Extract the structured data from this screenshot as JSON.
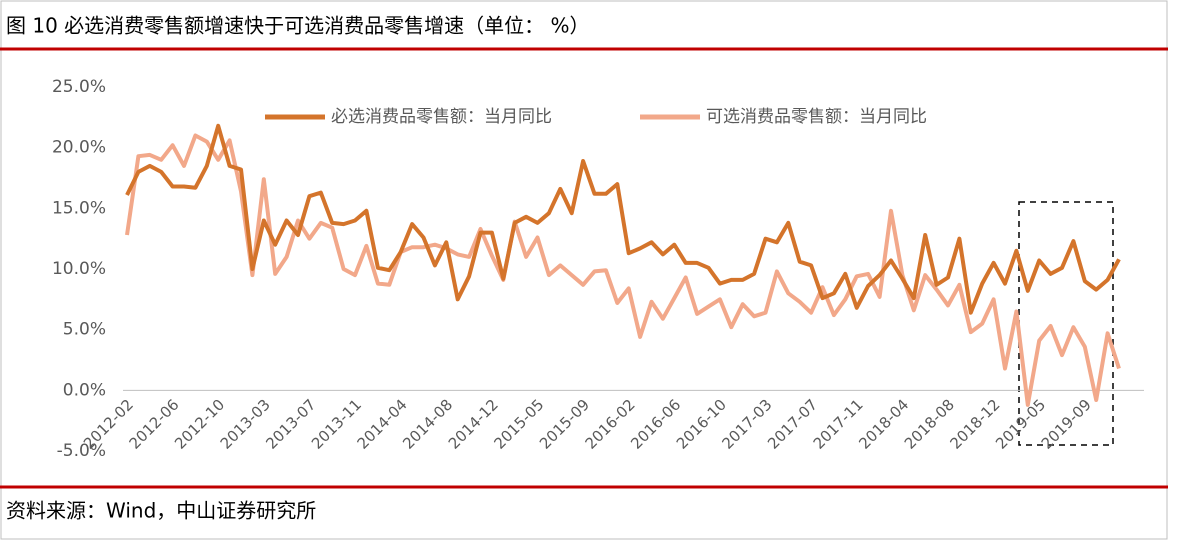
{
  "chart_data": {
    "type": "line",
    "title": "图 10 必选消费零售额增速快于可选消费品零售增速（单位： %）",
    "source": "资料来源：Wind，中山证券研究所",
    "categories": [
      "2012-02",
      null,
      null,
      null,
      "2012-06",
      null,
      null,
      null,
      "2012-10",
      null,
      null,
      null,
      "2013-03",
      null,
      null,
      null,
      "2013-07",
      null,
      null,
      null,
      "2013-11",
      null,
      null,
      null,
      "2014-04",
      null,
      null,
      null,
      "2014-08",
      null,
      null,
      null,
      "2014-12",
      null,
      null,
      null,
      "2015-05",
      null,
      null,
      null,
      "2015-09",
      null,
      null,
      null,
      "2016-02",
      null,
      null,
      null,
      "2016-06",
      null,
      null,
      null,
      "2016-10",
      null,
      null,
      null,
      "2017-03",
      null,
      null,
      null,
      "2017-07",
      null,
      null,
      null,
      "2017-11",
      null,
      null,
      null,
      "2018-04",
      null,
      null,
      null,
      "2018-08",
      null,
      null,
      null,
      "2018-12",
      null,
      null,
      null,
      "2019-05",
      null,
      null,
      null,
      "2019-09",
      null,
      null,
      null
    ],
    "series": [
      {
        "name": "必选消费品零售额：当月同比",
        "color": "#d4742b",
        "values": [
          16.1,
          18.0,
          18.5,
          18.0,
          16.8,
          16.8,
          16.7,
          18.5,
          21.8,
          18.5,
          18.2,
          10.0,
          14.0,
          12.0,
          14.0,
          12.8,
          16.0,
          16.3,
          13.8,
          13.7,
          14.0,
          14.8,
          10.1,
          9.9,
          11.4,
          13.7,
          12.6,
          10.3,
          12.2,
          7.5,
          9.4,
          13.0,
          13.0,
          9.2,
          13.8,
          14.3,
          13.8,
          14.6,
          16.6,
          14.6,
          18.9,
          16.2,
          16.2,
          17.0,
          11.3,
          11.7,
          12.2,
          11.2,
          12.0,
          10.5,
          10.5,
          10.1,
          8.8,
          9.1,
          9.1,
          9.6,
          12.5,
          12.2,
          13.8,
          10.6,
          10.3,
          7.6,
          8.0,
          9.6,
          6.8,
          8.6,
          9.5,
          10.7,
          9.2,
          7.6,
          12.8,
          8.7,
          9.3,
          12.5,
          6.4,
          8.8,
          10.5,
          8.8,
          11.5,
          8.2,
          10.7,
          9.6,
          10.1,
          12.3,
          9.0,
          8.3,
          9.1,
          10.8
        ]
      },
      {
        "name": "可选消费品零售额：当月同比",
        "color": "#f2a88a",
        "values": [
          12.8,
          19.3,
          19.4,
          19.0,
          20.2,
          18.5,
          21.0,
          20.5,
          19.0,
          20.6,
          16.4,
          9.5,
          17.4,
          9.6,
          11.0,
          14.0,
          12.5,
          13.8,
          13.4,
          10.0,
          9.5,
          11.9,
          8.8,
          8.7,
          11.4,
          11.8,
          11.8,
          12.0,
          11.7,
          11.2,
          11.0,
          13.3,
          11.1,
          9.1,
          13.9,
          11.0,
          12.6,
          9.5,
          10.3,
          9.5,
          8.7,
          9.8,
          9.9,
          7.2,
          8.4,
          4.4,
          7.3,
          5.9,
          7.6,
          9.3,
          6.3,
          6.9,
          7.5,
          5.2,
          7.1,
          6.1,
          6.4,
          9.8,
          8.0,
          7.3,
          6.4,
          8.5,
          6.2,
          7.5,
          9.4,
          9.6,
          7.7,
          14.8,
          9.5,
          6.6,
          9.5,
          8.3,
          7.0,
          8.7,
          4.8,
          5.5,
          7.5,
          1.8,
          6.5,
          -1.2,
          4.1,
          5.3,
          2.9,
          5.2,
          3.6,
          -0.8,
          4.7,
          1.8
        ]
      }
    ],
    "ylim": [
      -5,
      25
    ],
    "yticks": [
      {
        "value": -5,
        "label": "-5.0%"
      },
      {
        "value": 0,
        "label": "0.0%"
      },
      {
        "value": 5,
        "label": "5.0%"
      },
      {
        "value": 10,
        "label": "10.0%"
      },
      {
        "value": 15,
        "label": "15.0%"
      },
      {
        "value": 20,
        "label": "20.0%"
      },
      {
        "value": 25,
        "label": "25.0%"
      }
    ],
    "legend": "top"
  }
}
